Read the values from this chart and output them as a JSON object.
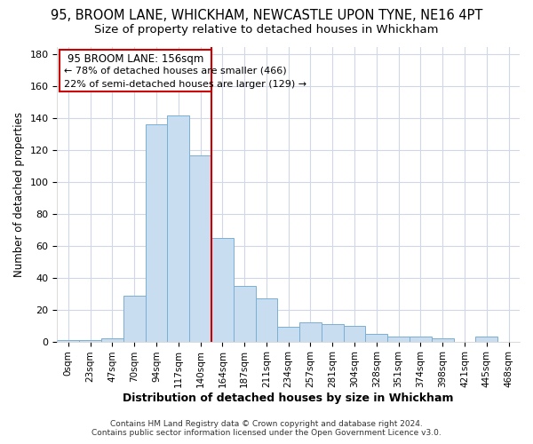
{
  "title": "95, BROOM LANE, WHICKHAM, NEWCASTLE UPON TYNE, NE16 4PT",
  "subtitle": "Size of property relative to detached houses in Whickham",
  "xlabel": "Distribution of detached houses by size in Whickham",
  "ylabel": "Number of detached properties",
  "categories": [
    "0sqm",
    "23sqm",
    "47sqm",
    "70sqm",
    "94sqm",
    "117sqm",
    "140sqm",
    "164sqm",
    "187sqm",
    "211sqm",
    "234sqm",
    "257sqm",
    "281sqm",
    "304sqm",
    "328sqm",
    "351sqm",
    "374sqm",
    "398sqm",
    "421sqm",
    "445sqm",
    "468sqm"
  ],
  "values": [
    1,
    1,
    2,
    29,
    136,
    142,
    117,
    65,
    35,
    27,
    9,
    12,
    11,
    10,
    5,
    3,
    3,
    2,
    0,
    3,
    0
  ],
  "bar_color": "#c8ddf0",
  "bar_edge_color": "#7aafd4",
  "reference_line_label": "95 BROOM LANE: 156sqm",
  "annotation_line1": "← 78% of detached houses are smaller (466)",
  "annotation_line2": "22% of semi-detached houses are larger (129) →",
  "vline_color": "#cc0000",
  "ylim": [
    0,
    185
  ],
  "yticks": [
    0,
    20,
    40,
    60,
    80,
    100,
    120,
    140,
    160,
    180
  ],
  "footer_line1": "Contains HM Land Registry data © Crown copyright and database right 2024.",
  "footer_line2": "Contains public sector information licensed under the Open Government Licence v3.0.",
  "bg_color": "#ffffff",
  "plot_bg_color": "#ffffff",
  "grid_color": "#d0d8e8",
  "title_fontsize": 10.5,
  "subtitle_fontsize": 9.5
}
